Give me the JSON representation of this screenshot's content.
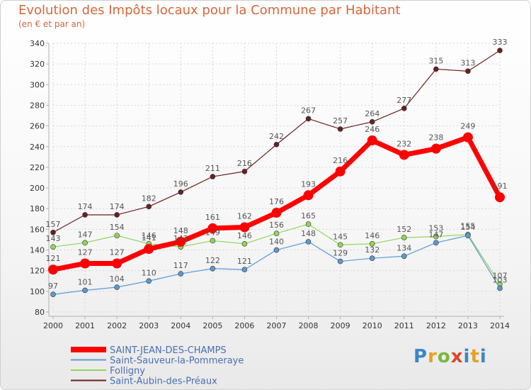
{
  "chart_data": {
    "type": "line",
    "title": "Evolution des Impôts locaux pour la Commune par Habitant",
    "subtitle": "(en € et par an)",
    "categories": [
      "2000",
      "2001",
      "2002",
      "2003",
      "2004",
      "2005",
      "2006",
      "2007",
      "2008",
      "2009",
      "2010",
      "2011",
      "2012",
      "2013",
      "2014"
    ],
    "ylim": [
      80,
      340
    ],
    "yticks": [
      80,
      100,
      120,
      140,
      160,
      180,
      200,
      220,
      240,
      260,
      280,
      300,
      320,
      340
    ],
    "grid": true,
    "legend_position": "bottom-left",
    "series": [
      {
        "name": "Saint-Aubin-des-Préaux",
        "color": "#6b1f1f",
        "width": 1.2,
        "marker": 3.5,
        "values": [
          157,
          174,
          174,
          182,
          196,
          211,
          216,
          242,
          267,
          257,
          264,
          277,
          315,
          313,
          333
        ]
      },
      {
        "name": "Folligny",
        "color": "#8fd65a",
        "width": 1.2,
        "marker": 3.5,
        "values": [
          143,
          147,
          154,
          146,
          143,
          149,
          146,
          156,
          165,
          145,
          146,
          152,
          153,
          155,
          107
        ]
      },
      {
        "name": "Saint-Sauveur-la-Pommeraye",
        "color": "#5a9bd6",
        "width": 1.2,
        "marker": 3.5,
        "values": [
          97,
          101,
          104,
          110,
          117,
          122,
          121,
          140,
          148,
          129,
          132,
          134,
          147,
          154,
          103
        ]
      },
      {
        "name": "SAINT-JEAN-DES-CHAMPS",
        "color": "#ff0000",
        "width": 7,
        "marker": 7,
        "values": [
          121,
          127,
          127,
          141,
          148,
          161,
          162,
          176,
          193,
          216,
          246,
          232,
          238,
          249,
          191
        ]
      }
    ],
    "legend_order": [
      "SAINT-JEAN-DES-CHAMPS",
      "Saint-Sauveur-la-Pommeraye",
      "Folligny",
      "Saint-Aubin-des-Préaux"
    ]
  },
  "logo_text": "Proxiti"
}
